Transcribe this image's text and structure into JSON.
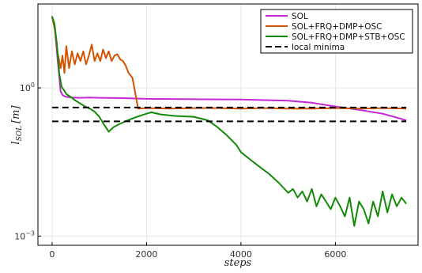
{
  "chart_data": {
    "type": "line",
    "title": "",
    "xlabel": "steps",
    "ylabel_main": "l",
    "ylabel_sub": "SOL",
    "ylabel_unit": "[m]",
    "xlim": [
      -300,
      7750
    ],
    "yscale": "log",
    "ylim": [
      0.00065,
      50
    ],
    "x_ticks": [
      {
        "value": 0,
        "label": "0"
      },
      {
        "value": 2000,
        "label": "2000"
      },
      {
        "value": 4000,
        "label": "4000"
      },
      {
        "value": 6000,
        "label": "6000"
      }
    ],
    "y_ticks": [
      {
        "value": 0.001,
        "base": "10",
        "exp": "−3"
      },
      {
        "value": 1,
        "base": "10",
        "exp": "0"
      }
    ],
    "grid": true,
    "legend_position": "top-right",
    "series": [
      {
        "name": "SOL",
        "color": "#c427d6",
        "x": [
          0,
          60,
          120,
          180,
          220,
          260,
          300,
          400,
          600,
          800,
          1000,
          1500,
          1800,
          2000,
          3000,
          4000,
          5000,
          5500,
          6000,
          6500,
          7000,
          7300,
          7500
        ],
        "y": [
          28,
          15,
          3.5,
          0.85,
          0.72,
          0.68,
          0.66,
          0.64,
          0.63,
          0.64,
          0.63,
          0.62,
          0.61,
          0.6,
          0.59,
          0.58,
          0.55,
          0.5,
          0.42,
          0.36,
          0.3,
          0.25,
          0.22
        ]
      },
      {
        "name": "SOL+FRQ+DMP+OSC",
        "color": "#d35400",
        "x": [
          0,
          60,
          120,
          180,
          220,
          260,
          300,
          360,
          420,
          480,
          540,
          600,
          660,
          720,
          780,
          840,
          900,
          960,
          1020,
          1080,
          1140,
          1200,
          1260,
          1320,
          1380,
          1440,
          1500,
          1560,
          1620,
          1700,
          1760,
          1820,
          2000,
          2500,
          3000,
          3500,
          4000,
          4500,
          5000,
          5500,
          6000,
          6500,
          7000,
          7500
        ],
        "y": [
          28,
          15,
          5,
          2.5,
          4.5,
          2.0,
          7.0,
          2.5,
          5.5,
          3.0,
          5.0,
          3.5,
          5.5,
          3.0,
          4.5,
          7.5,
          3.5,
          5.0,
          3.5,
          6.0,
          4.0,
          5.5,
          3.5,
          4.5,
          4.8,
          3.8,
          3.5,
          2.8,
          2.0,
          1.6,
          0.8,
          0.38,
          0.39,
          0.38,
          0.39,
          0.39,
          0.38,
          0.39,
          0.38,
          0.38,
          0.39,
          0.38,
          0.39,
          0.38
        ]
      },
      {
        "name": "SOL+FRQ+DMP+STB+OSC",
        "color": "#138a07",
        "x": [
          0,
          50,
          100,
          150,
          200,
          250,
          300,
          400,
          500,
          600,
          700,
          800,
          900,
          1000,
          1100,
          1200,
          1300,
          1400,
          1600,
          1800,
          2000,
          2100,
          2300,
          2600,
          3000,
          3300,
          3500,
          3700,
          3900,
          4000,
          4200,
          4400,
          4600,
          4800,
          5000,
          5100,
          5200,
          5300,
          5400,
          5500,
          5600,
          5700,
          5800,
          5900,
          6000,
          6100,
          6200,
          6300,
          6400,
          6500,
          6600,
          6700,
          6800,
          6900,
          7000,
          7100,
          7200,
          7300,
          7400,
          7500
        ],
        "y": [
          28,
          20,
          8,
          2.0,
          1.05,
          0.9,
          0.75,
          0.65,
          0.55,
          0.48,
          0.42,
          0.38,
          0.33,
          0.26,
          0.18,
          0.13,
          0.16,
          0.18,
          0.22,
          0.26,
          0.3,
          0.32,
          0.29,
          0.27,
          0.26,
          0.22,
          0.16,
          0.11,
          0.07,
          0.05,
          0.035,
          0.025,
          0.018,
          0.012,
          0.0075,
          0.009,
          0.006,
          0.008,
          0.005,
          0.009,
          0.004,
          0.007,
          0.005,
          0.0035,
          0.006,
          0.004,
          0.0025,
          0.006,
          0.0016,
          0.005,
          0.0035,
          0.0018,
          0.005,
          0.0025,
          0.008,
          0.003,
          0.007,
          0.004,
          0.006,
          0.0045
        ]
      },
      {
        "name": "local minima",
        "color": "#000000",
        "dashed": true,
        "lines": [
          {
            "x": [
              0,
              7500
            ],
            "y": [
              0.4,
              0.4
            ]
          },
          {
            "x": [
              0,
              7500
            ],
            "y": [
              0.21,
              0.21
            ]
          }
        ]
      }
    ]
  }
}
